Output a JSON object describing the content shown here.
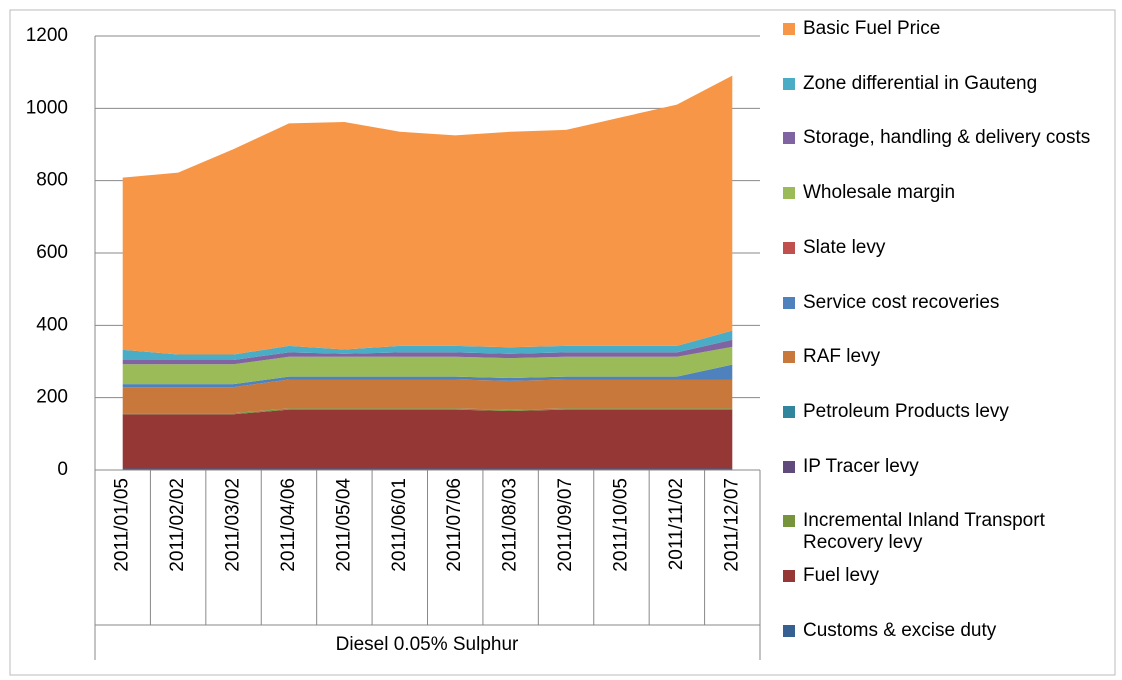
{
  "chart_data": {
    "type": "stacked_area",
    "categories": [
      "2011/01/05",
      "2011/02/02",
      "2011/03/02",
      "2011/04/06",
      "2011/05/04",
      "2011/06/01",
      "2011/07/06",
      "2011/08/03",
      "2011/09/07",
      "2011/10/05",
      "2011/11/02",
      "2011/12/07"
    ],
    "group_label": "Diesel 0.05% Sulphur",
    "series": [
      {
        "name": "Basic Fuel Price",
        "color": "#f79646",
        "values": [
          476,
          503,
          568,
          615,
          629,
          592,
          582,
          596,
          597,
          632,
          667,
          705
        ]
      },
      {
        "name": "Zone differential in Gauteng",
        "color": "#4bacc6",
        "values": [
          28,
          15,
          15,
          18,
          12,
          18,
          18,
          18,
          18,
          18,
          18,
          25
        ]
      },
      {
        "name": "Storage, handling & delivery costs",
        "color": "#8064a2",
        "values": [
          12,
          12,
          12,
          12,
          8,
          12,
          12,
          12,
          12,
          12,
          12,
          20
        ]
      },
      {
        "name": "Wholesale margin",
        "color": "#9bbb59",
        "values": [
          55,
          55,
          55,
          55,
          55,
          55,
          55,
          55,
          55,
          55,
          55,
          49
        ]
      },
      {
        "name": "Slate levy",
        "color": "#c0504d",
        "values": [
          0,
          0,
          0,
          0,
          0,
          0,
          0,
          0,
          0,
          0,
          0,
          0
        ]
      },
      {
        "name": "Service cost recoveries",
        "color": "#4f81bd",
        "values": [
          8,
          8,
          8,
          8,
          8,
          8,
          8,
          8,
          8,
          8,
          8,
          41
        ]
      },
      {
        "name": "RAF levy",
        "color": "#c9783b",
        "values": [
          72,
          72,
          72,
          80,
          80,
          80,
          80,
          80,
          80,
          80,
          80,
          80
        ]
      },
      {
        "name": "Petroleum Products levy",
        "color": "#31859c",
        "values": [
          0.2,
          0.2,
          0.2,
          0.2,
          0.2,
          0.2,
          0.2,
          0.2,
          0.2,
          0.2,
          0.2,
          0.2
        ]
      },
      {
        "name": "IP Tracer levy",
        "color": "#604a7b",
        "values": [
          0.1,
          0.1,
          0.1,
          0.1,
          0.1,
          0.1,
          0.1,
          0.1,
          0.1,
          0.1,
          0.1,
          0.1
        ]
      },
      {
        "name": "Incremental Inland Transport Recovery levy",
        "color": "#77933c",
        "values": [
          3,
          3,
          3,
          3,
          3,
          3,
          3,
          3,
          3,
          3,
          3,
          3
        ]
      },
      {
        "name": "Fuel levy",
        "color": "#953735",
        "values": [
          150,
          150,
          150,
          163,
          163,
          163,
          163,
          159,
          163,
          163,
          163,
          163
        ]
      },
      {
        "name": "Customs & excise duty",
        "color": "#376092",
        "values": [
          4,
          4,
          4,
          4,
          4,
          4,
          4,
          4,
          4,
          4,
          4,
          4
        ]
      }
    ],
    "ylim": [
      0,
      1200
    ],
    "yticks": [
      0,
      200,
      400,
      600,
      800,
      1000,
      1200
    ],
    "grid": true,
    "legend": "right"
  }
}
